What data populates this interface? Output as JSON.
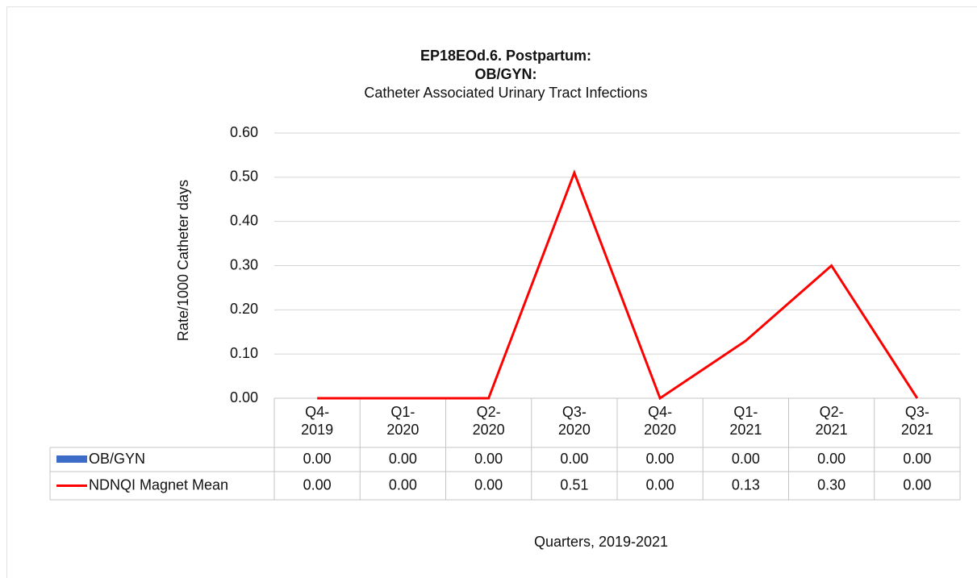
{
  "chart_data": {
    "type": "line",
    "title": "EP18EOd.6. Postpartum:",
    "title2": "OB/GYN:",
    "subtitle": "Catheter Associated Urinary Tract Infections",
    "y_label": "Rate/1000 Catheter days",
    "x_label": "Quarters, 2019-2021",
    "categories": [
      "Q4-2019",
      "Q1-2020",
      "Q2-2020",
      "Q3-2020",
      "Q4-2020",
      "Q1-2021",
      "Q2-2021",
      "Q3-2021"
    ],
    "series": [
      {
        "name": "OB/GYN",
        "type": "bar",
        "color": "#3d6cc8",
        "values": [
          0,
          0,
          0,
          0,
          0,
          0,
          0,
          0
        ],
        "value_labels": [
          "0.00",
          "0.00",
          "0.00",
          "0.00",
          "0.00",
          "0.00",
          "0.00",
          "0.00"
        ]
      },
      {
        "name": "NDNQI Magnet Mean",
        "type": "line",
        "color": "#ff0000",
        "values": [
          0,
          0,
          0,
          0.51,
          0,
          0.13,
          0.3,
          0
        ],
        "value_labels": [
          "0.00",
          "0.00",
          "0.00",
          "0.51",
          "0.00",
          "0.13",
          "0.30",
          "0.00"
        ]
      }
    ],
    "ylim": [
      0,
      0.6
    ],
    "yticks": [
      {
        "value": 0,
        "label": "0.00"
      },
      {
        "value": 0.1,
        "label": "0.10"
      },
      {
        "value": 0.2,
        "label": "0.20"
      },
      {
        "value": 0.3,
        "label": "0.30"
      },
      {
        "value": 0.4,
        "label": "0.40"
      },
      {
        "value": 0.5,
        "label": "0.50"
      },
      {
        "value": 0.6,
        "label": "0.60"
      }
    ],
    "grid": true
  }
}
